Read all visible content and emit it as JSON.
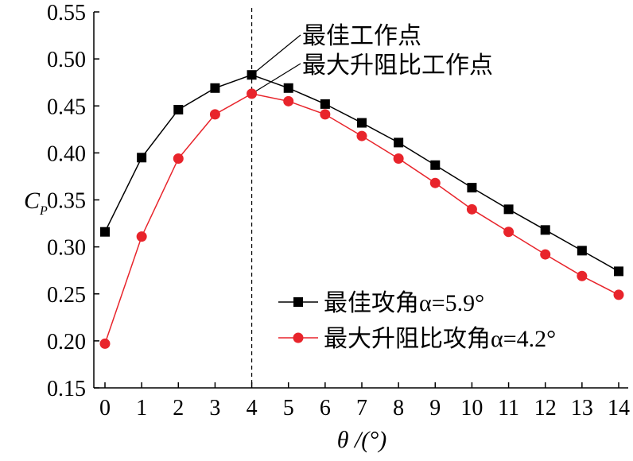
{
  "chart_data": {
    "type": "line",
    "title": "",
    "xlabel": "θ /(°)",
    "ylabel_main": "C",
    "ylabel_sub": "P",
    "x": [
      0,
      1,
      2,
      3,
      4,
      5,
      6,
      7,
      8,
      9,
      10,
      11,
      12,
      13,
      14
    ],
    "xlim": [
      0,
      14
    ],
    "ylim": [
      0.15,
      0.55
    ],
    "yticks": [
      "0.15",
      "0.20",
      "0.25",
      "0.30",
      "0.35",
      "0.40",
      "0.45",
      "0.50",
      "0.55"
    ],
    "xticks": [
      "0",
      "1",
      "2",
      "3",
      "4",
      "5",
      "6",
      "7",
      "8",
      "9",
      "10",
      "11",
      "12",
      "13",
      "14"
    ],
    "grid": false,
    "legend_position": "bottom-right",
    "series": [
      {
        "name": "最佳攻角α=5.9°",
        "color": "#000000",
        "marker": "square",
        "values": [
          0.316,
          0.395,
          0.446,
          0.469,
          0.483,
          0.469,
          0.452,
          0.432,
          0.411,
          0.387,
          0.363,
          0.34,
          0.318,
          0.296,
          0.274
        ]
      },
      {
        "name": "最大升阻比攻角α=4.2°",
        "color": "#e8242b",
        "marker": "circle",
        "values": [
          0.197,
          0.311,
          0.394,
          0.441,
          0.463,
          0.455,
          0.441,
          0.418,
          0.394,
          0.368,
          0.34,
          0.316,
          0.292,
          0.269,
          0.249
        ]
      }
    ],
    "vline_x": 4,
    "annotations": [
      {
        "text": "最佳工作点",
        "series": 0,
        "x": 4
      },
      {
        "text": "最大升阻比工作点",
        "series": 1,
        "x": 4
      }
    ]
  }
}
